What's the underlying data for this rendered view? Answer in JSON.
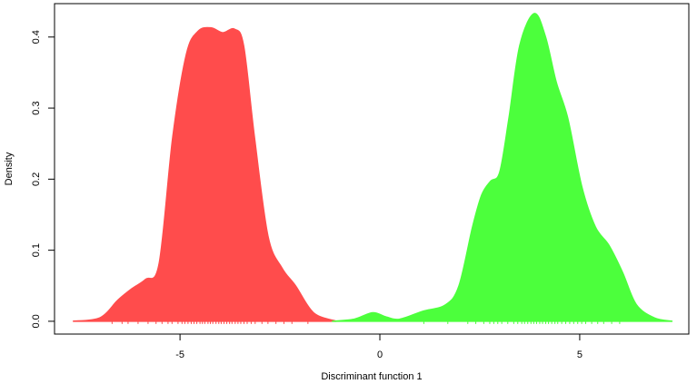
{
  "chart_data": {
    "type": "area",
    "xlabel": "Discriminant function 1",
    "ylabel": "Density",
    "xlim": [
      -8.14,
      7.73
    ],
    "ylim": [
      -0.018,
      0.447
    ],
    "xticks": [
      -5,
      0,
      5
    ],
    "yticks": [
      {
        "value": 0,
        "label": "0.0"
      },
      0.1,
      0.2,
      0.3,
      0.4
    ],
    "grid": false,
    "series": [
      {
        "color": "#ff4c4c",
        "x": [
          -7.68,
          -7.0,
          -6.55,
          -6.2,
          -5.86,
          -5.52,
          -5.18,
          -4.84,
          -4.55,
          -4.23,
          -3.93,
          -3.64,
          -3.41,
          -3.14,
          -2.8,
          -2.45,
          -2.11,
          -1.66,
          -1.09
        ],
        "values": [
          0,
          0.005,
          0.03,
          0.046,
          0.059,
          0.082,
          0.26,
          0.376,
          0.408,
          0.413,
          0.406,
          0.411,
          0.388,
          0.26,
          0.12,
          0.075,
          0.05,
          0.012,
          0
        ],
        "rug": [
          -6.7,
          -6.45,
          -6.3,
          -6.05,
          -5.8,
          -5.6,
          -5.45,
          -5.3,
          -5.2,
          -5.05,
          -4.95,
          -4.88,
          -4.8,
          -4.72,
          -4.65,
          -4.58,
          -4.5,
          -4.44,
          -4.38,
          -4.3,
          -4.24,
          -4.18,
          -4.1,
          -4.03,
          -3.97,
          -3.9,
          -3.83,
          -3.76,
          -3.7,
          -3.62,
          -3.55,
          -3.48,
          -3.4,
          -3.32,
          -3.22,
          -3.12,
          -2.95,
          -2.8,
          -2.6,
          -2.4,
          -2.2,
          -1.8
        ]
      },
      {
        "color": "#4cff3c",
        "x": [
          -1.2,
          -0.64,
          -0.18,
          0.16,
          0.5,
          1.07,
          1.64,
          1.98,
          2.32,
          2.55,
          2.77,
          3.0,
          3.23,
          3.5,
          3.86,
          4.14,
          4.41,
          4.7,
          5.05,
          5.39,
          5.73,
          6.07,
          6.41,
          6.86,
          7.32
        ],
        "values": [
          0,
          0.003,
          0.012,
          0.006,
          0.003,
          0.014,
          0.023,
          0.05,
          0.133,
          0.178,
          0.197,
          0.21,
          0.286,
          0.388,
          0.433,
          0.401,
          0.337,
          0.286,
          0.19,
          0.133,
          0.107,
          0.069,
          0.024,
          0.005,
          0
        ],
        "rug": [
          1.1,
          1.7,
          2.2,
          2.4,
          2.6,
          2.75,
          2.85,
          2.95,
          3.05,
          3.2,
          3.35,
          3.45,
          3.55,
          3.62,
          3.7,
          3.78,
          3.85,
          3.92,
          4.0,
          4.07,
          4.15,
          4.22,
          4.3,
          4.38,
          4.45,
          4.55,
          4.65,
          4.75,
          4.85,
          4.95,
          5.05,
          5.15,
          5.3,
          5.45,
          5.6,
          5.8,
          6.0
        ]
      }
    ]
  }
}
